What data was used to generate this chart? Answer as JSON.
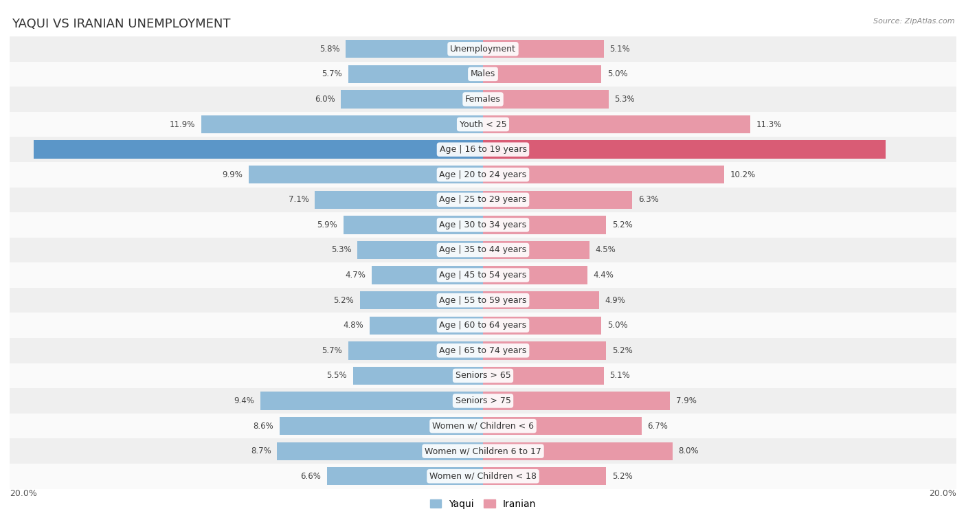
{
  "title": "YAQUI VS IRANIAN UNEMPLOYMENT",
  "source": "Source: ZipAtlas.com",
  "categories": [
    "Unemployment",
    "Males",
    "Females",
    "Youth < 25",
    "Age | 16 to 19 years",
    "Age | 20 to 24 years",
    "Age | 25 to 29 years",
    "Age | 30 to 34 years",
    "Age | 35 to 44 years",
    "Age | 45 to 54 years",
    "Age | 55 to 59 years",
    "Age | 60 to 64 years",
    "Age | 65 to 74 years",
    "Seniors > 65",
    "Seniors > 75",
    "Women w/ Children < 6",
    "Women w/ Children 6 to 17",
    "Women w/ Children < 18"
  ],
  "yaqui_values": [
    5.8,
    5.7,
    6.0,
    11.9,
    19.0,
    9.9,
    7.1,
    5.9,
    5.3,
    4.7,
    5.2,
    4.8,
    5.7,
    5.5,
    9.4,
    8.6,
    8.7,
    6.6
  ],
  "iranian_values": [
    5.1,
    5.0,
    5.3,
    11.3,
    17.0,
    10.2,
    6.3,
    5.2,
    4.5,
    4.4,
    4.9,
    5.0,
    5.2,
    5.1,
    7.9,
    6.7,
    8.0,
    5.2
  ],
  "yaqui_color": "#92bcd9",
  "iranian_color": "#e899a8",
  "yaqui_highlight_color": "#5b96c8",
  "iranian_highlight_color": "#d95c75",
  "highlight_row": 4,
  "max_value": 20.0,
  "bar_height": 0.72,
  "bg_color_odd": "#efefef",
  "bg_color_even": "#fafafa",
  "title_fontsize": 13,
  "label_fontsize": 9,
  "value_fontsize": 8.5,
  "legend_fontsize": 10,
  "source_fontsize": 8
}
